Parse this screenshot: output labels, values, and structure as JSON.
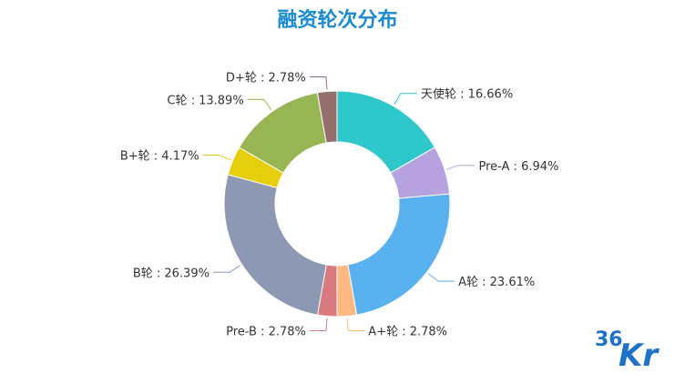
{
  "colors": {
    "title": "#1a8bd0",
    "watermark": "#1e73c8"
  },
  "watermark": {
    "text_a": "36",
    "text_b": "Kr"
  },
  "chart_data": {
    "type": "pie",
    "variant": "donut",
    "title": "融资轮次分布",
    "slices": [
      {
        "label": "天使轮",
        "value": 16.66,
        "color": "#2ec8ca",
        "text": "天使轮 : 16.66%"
      },
      {
        "label": "Pre-A",
        "value": 6.94,
        "color": "#b6a2de",
        "text": "Pre-A : 6.94%"
      },
      {
        "label": "A轮",
        "value": 23.61,
        "color": "#5ab1ef",
        "text": "A轮 : 23.61%"
      },
      {
        "label": "A+轮",
        "value": 2.78,
        "color": "#ffb980",
        "text": "A+轮 : 2.78%"
      },
      {
        "label": "Pre-B",
        "value": 2.78,
        "color": "#d87a80",
        "text": "Pre-B : 2.78%"
      },
      {
        "label": "B轮",
        "value": 26.39,
        "color": "#8d98b3",
        "text": "B轮 : 26.39%"
      },
      {
        "label": "B+轮",
        "value": 4.17,
        "color": "#e5cf0d",
        "text": "B+轮 : 4.17%"
      },
      {
        "label": "C轮",
        "value": 13.89,
        "color": "#97b552",
        "text": "C轮 : 13.89%"
      },
      {
        "label": "D+轮",
        "value": 2.78,
        "color": "#95706d",
        "text": "D+轮 : 2.78%"
      }
    ]
  }
}
